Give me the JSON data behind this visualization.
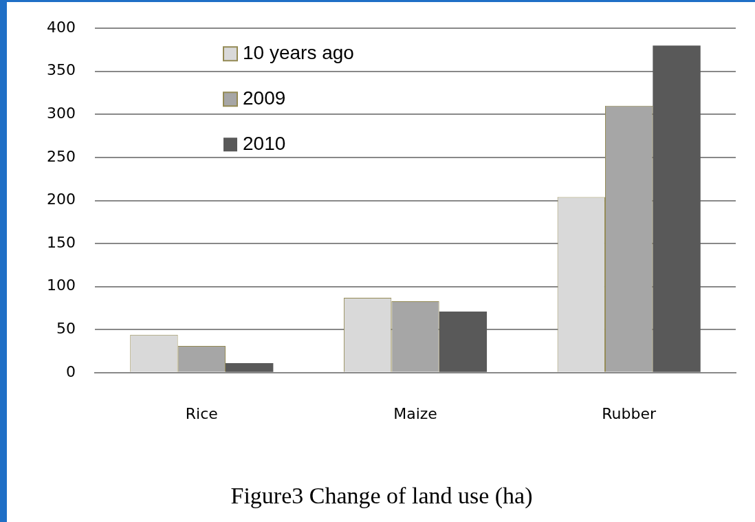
{
  "chart_data": {
    "type": "bar",
    "title": "Figure3 Change of land use (ha)",
    "categories": [
      "Rice",
      "Maize",
      "Rubber"
    ],
    "series": [
      {
        "name": "10 years ago",
        "color": "#d9d9d9",
        "values": [
          44,
          87,
          204
        ]
      },
      {
        "name": "2009",
        "color": "#a6a6a6",
        "values": [
          31,
          83,
          310
        ]
      },
      {
        "name": "2010",
        "color": "#595959",
        "values": [
          11,
          71,
          380
        ]
      }
    ],
    "ylim": [
      0,
      400
    ],
    "yticks": [
      0,
      50,
      100,
      150,
      200,
      250,
      300,
      350,
      400
    ],
    "grid": "y",
    "legend": "top left"
  }
}
